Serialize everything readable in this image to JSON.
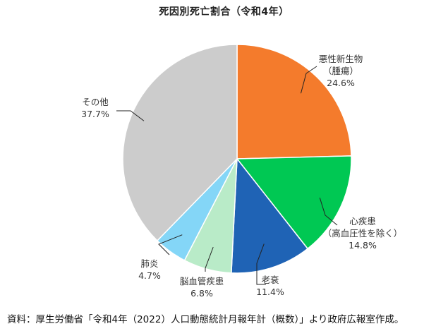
{
  "chart_data": {
    "type": "pie",
    "title": "死因別死亡割合（令和4年）",
    "start_angle_deg": 0,
    "direction": "clockwise",
    "slices": [
      {
        "label": "悪性新生物（腫瘍）",
        "label_lines": [
          "悪性新生物",
          "（腫瘍）"
        ],
        "value": 24.6,
        "value_text": "24.6%",
        "color": "#f47b2c"
      },
      {
        "label": "心疾患（高血圧性を除く）",
        "label_lines": [
          "心疾患",
          "（高血圧性を除く）"
        ],
        "value": 14.8,
        "value_text": "14.8%",
        "color": "#00c853"
      },
      {
        "label": "老衰",
        "label_lines": [
          "老衰"
        ],
        "value": 11.4,
        "value_text": "11.4%",
        "color": "#1f63b5"
      },
      {
        "label": "脳血管疾患",
        "label_lines": [
          "脳血管疾患"
        ],
        "value": 6.8,
        "value_text": "6.8%",
        "color": "#b9ebc8"
      },
      {
        "label": "肺炎",
        "label_lines": [
          "肺炎"
        ],
        "value": 4.7,
        "value_text": "4.7%",
        "color": "#84d6f7"
      },
      {
        "label": "その他",
        "label_lines": [
          "その他"
        ],
        "value": 37.7,
        "value_text": "37.7%",
        "color": "#cccccc"
      }
    ]
  },
  "source": "資料：厚生労働省「令和4年（2022）人口動態統計月報年計（概数）」より政府広報室作成。"
}
